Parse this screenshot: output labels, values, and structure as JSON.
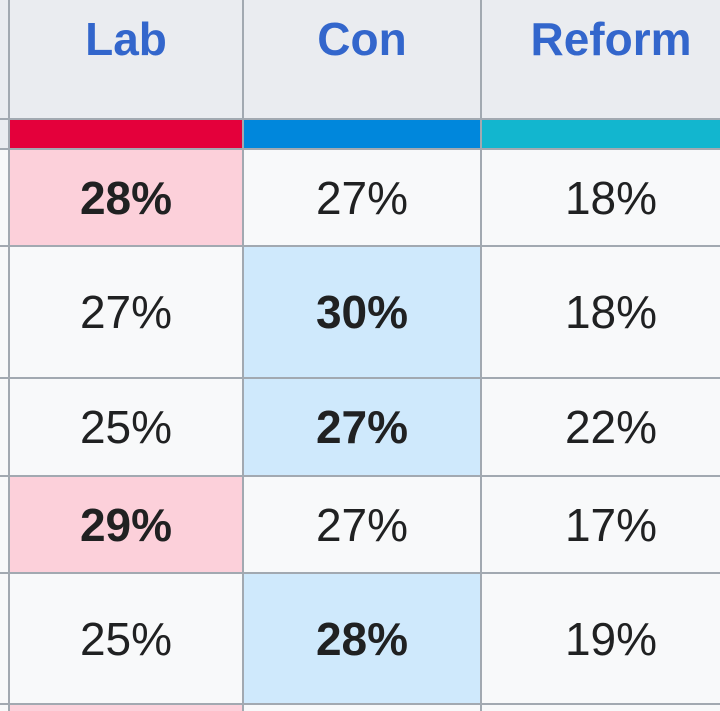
{
  "table": {
    "headers": [
      "Lab",
      "Con",
      "Reform"
    ],
    "rows": [
      [
        "28%",
        "27%",
        "18%"
      ],
      [
        "27%",
        "30%",
        "18%"
      ],
      [
        "25%",
        "27%",
        "22%"
      ],
      [
        "29%",
        "27%",
        "17%"
      ],
      [
        "25%",
        "28%",
        "19%"
      ]
    ]
  }
}
